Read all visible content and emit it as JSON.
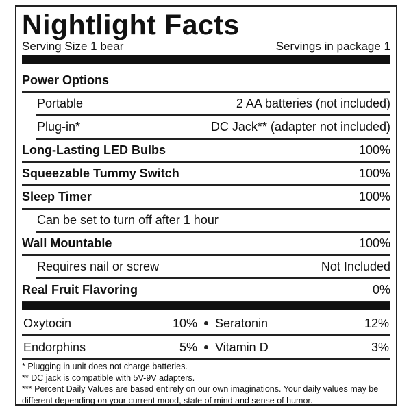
{
  "title": "Nightlight Facts",
  "serving_size": "Serving Size 1 bear",
  "servings": "Servings in package 1",
  "rows": [
    {
      "label": "Power Options",
      "value": null,
      "bold": true,
      "indent": false
    },
    {
      "label": "Portable",
      "value": "2 AA batteries (not included)",
      "bold": false,
      "indent": true
    },
    {
      "label": "Plug-in*",
      "value": "DC Jack** (adapter not included)",
      "bold": false,
      "indent": true
    },
    {
      "label": "Long-Lasting LED Bulbs",
      "value": "100%",
      "bold": true,
      "indent": false
    },
    {
      "label": "Squeezable Tummy Switch",
      "value": "100%",
      "bold": true,
      "indent": false
    },
    {
      "label": "Sleep Timer",
      "value": "100%",
      "bold": true,
      "indent": false
    },
    {
      "label": "Can be set to turn off after 1 hour",
      "value": null,
      "bold": false,
      "indent": true
    },
    {
      "label": "Wall Mountable",
      "value": "100%",
      "bold": true,
      "indent": false
    },
    {
      "label": "Requires nail or screw",
      "value": "Not Included",
      "bold": false,
      "indent": true
    },
    {
      "label": "Real Fruit Flavoring",
      "value": "0%",
      "bold": true,
      "indent": false
    }
  ],
  "vitamins": [
    [
      {
        "name": "Oxytocin",
        "value": "10%"
      },
      {
        "name": "Seratonin",
        "value": "12%"
      }
    ],
    [
      {
        "name": "Endorphins",
        "value": "5%"
      },
      {
        "name": "Vitamin D",
        "value": "3%"
      }
    ]
  ],
  "footnotes": [
    "* Plugging in unit does not charge batteries.",
    "** DC jack is compatible with 5V-9V adapters.",
    "*** Percent Daily Values are based entirely on our own imaginations. Your daily values may be different depending on your current mood, state of mind and sense of humor."
  ]
}
